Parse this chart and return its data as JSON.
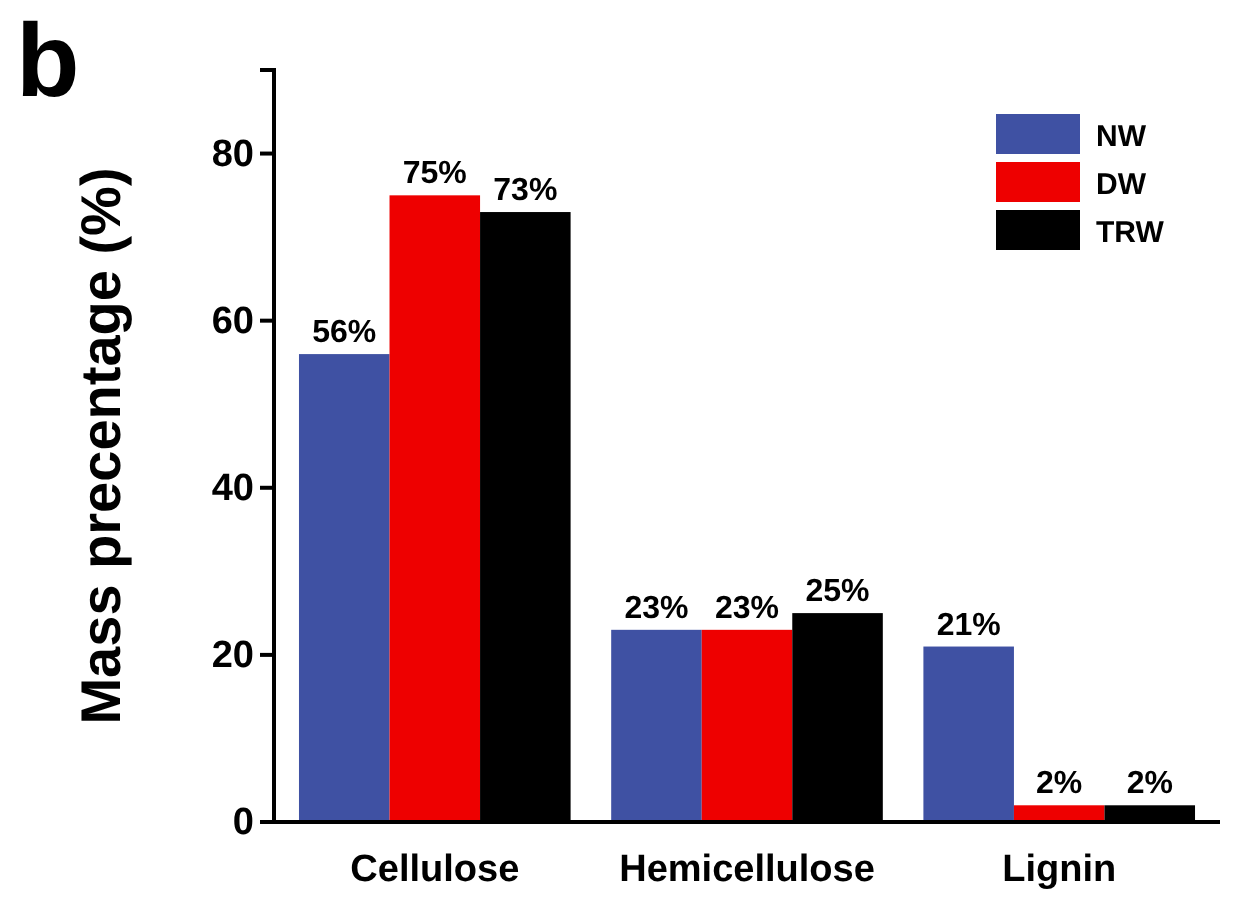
{
  "chart_data": {
    "type": "bar",
    "ylabel": "Mass precentage (%)",
    "annotations": [
      "b"
    ],
    "categories": [
      "Cellulose",
      "Hemicellulose",
      "Lignin"
    ],
    "series": [
      {
        "name": "NW",
        "color": "#3f51a3",
        "values": [
          56,
          23,
          21
        ],
        "value_labels": [
          "56%",
          "23%",
          "21%"
        ]
      },
      {
        "name": "DW",
        "color": "#ee0000",
        "values": [
          75,
          23,
          2
        ],
        "value_labels": [
          "75%",
          "23%",
          "2%"
        ]
      },
      {
        "name": "TRW",
        "color": "#000000",
        "values": [
          73,
          25,
          2
        ],
        "value_labels": [
          "73%",
          "25%",
          "2%"
        ]
      }
    ],
    "ylim": [
      0,
      90
    ],
    "yticks": [
      0,
      20,
      40,
      60,
      80
    ],
    "legend": "top right",
    "grid": false
  }
}
